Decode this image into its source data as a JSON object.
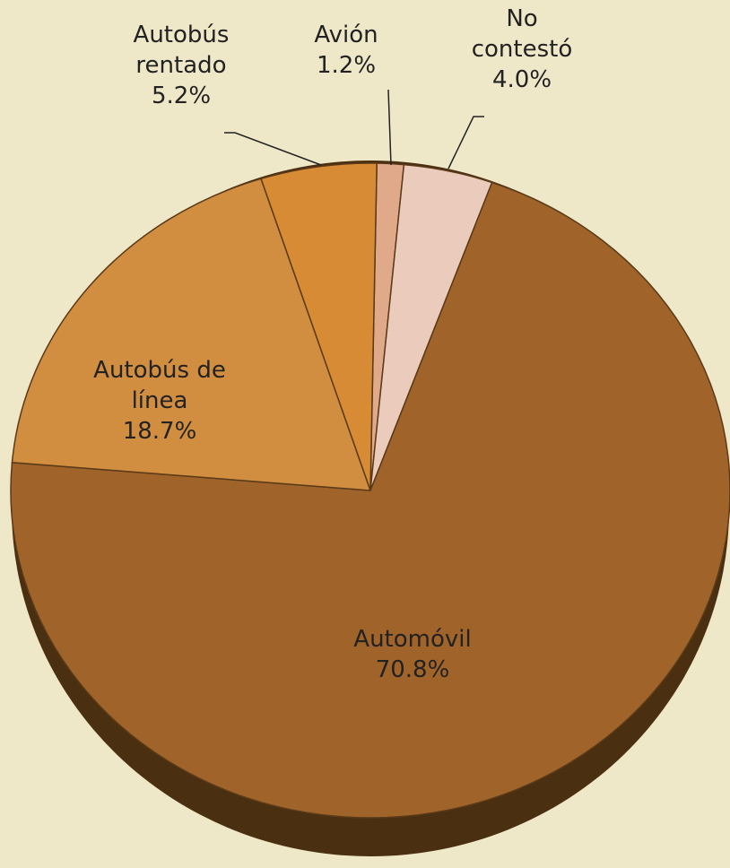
{
  "chart_data": {
    "type": "pie",
    "categories": [
      "Avión",
      "No contestó",
      "Automóvil",
      "Autobús de línea",
      "Autobús rentado"
    ],
    "values": [
      1.2,
      4.0,
      70.8,
      18.7,
      5.2
    ],
    "value_labels": [
      "1.2%",
      "4.0%",
      "70.8%",
      "18.7%",
      "5.2%"
    ],
    "colors": [
      "#e0a98a",
      "#ebcbbb",
      "#a0632a",
      "#d28e40",
      "#d78b35"
    ]
  }
}
